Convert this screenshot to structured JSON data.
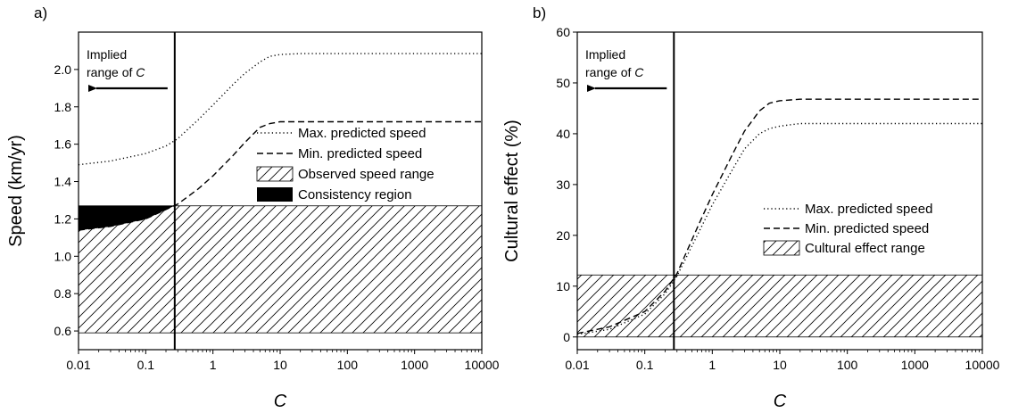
{
  "chart_data": [
    {
      "type": "line",
      "panel_label": "a)",
      "xlabel": "C",
      "ylabel": "Speed (km/yr)",
      "xscale": "log",
      "xlim": [
        0.01,
        10000
      ],
      "ylim": [
        0.5,
        2.2
      ],
      "xticks": [
        "0.01",
        "0.1",
        "1",
        "10",
        "100",
        "1000",
        "10000"
      ],
      "yticks": [
        "0.6",
        "0.8",
        "1.0",
        "1.2",
        "1.4",
        "1.6",
        "1.8",
        "2.0"
      ],
      "annotation_line1": "Implied",
      "annotation_line2": "range of ",
      "annotation_italic": "C",
      "implied_c": 0.27,
      "series": [
        {
          "name": "Max. predicted speed",
          "style": "dotted",
          "x": [
            0.01,
            0.03,
            0.1,
            0.2,
            0.3,
            0.6,
            1,
            2,
            3,
            5,
            7,
            10,
            20,
            50,
            100,
            1000,
            10000
          ],
          "y": [
            1.49,
            1.51,
            1.55,
            1.59,
            1.63,
            1.73,
            1.81,
            1.92,
            1.98,
            2.04,
            2.07,
            2.08,
            2.085,
            2.085,
            2.085,
            2.085,
            2.085
          ]
        },
        {
          "name": "Min. predicted speed",
          "style": "dashed",
          "x": [
            0.01,
            0.03,
            0.1,
            0.2,
            0.3,
            0.6,
            1,
            2,
            3,
            5,
            7,
            10,
            20,
            50,
            100,
            1000,
            10000
          ],
          "y": [
            1.14,
            1.16,
            1.2,
            1.25,
            1.28,
            1.36,
            1.43,
            1.54,
            1.61,
            1.69,
            1.71,
            1.72,
            1.72,
            1.72,
            1.72,
            1.72,
            1.72
          ]
        },
        {
          "name": "Observed speed range",
          "style": "hatched",
          "y_range": [
            0.59,
            1.27
          ]
        },
        {
          "name": "Consistency region",
          "style": "filled",
          "x_range": [
            0.01,
            0.27
          ],
          "y_range": [
            1.14,
            1.27
          ]
        }
      ],
      "legend_placement": "center-right"
    },
    {
      "type": "line",
      "panel_label": "b)",
      "xlabel": "C",
      "ylabel": "Cultural effect (%)",
      "xscale": "log",
      "xlim": [
        0.01,
        10000
      ],
      "ylim": [
        -2.5,
        60
      ],
      "xticks": [
        "0.01",
        "0.1",
        "1",
        "10",
        "100",
        "1000",
        "10000"
      ],
      "yticks": [
        "0",
        "10",
        "20",
        "30",
        "40",
        "50",
        "60"
      ],
      "annotation_line1": "Implied",
      "annotation_line2": "range of ",
      "annotation_italic": "C",
      "implied_c": 0.27,
      "series": [
        {
          "name": "Max. predicted speed",
          "style": "dotted",
          "x": [
            0.01,
            0.03,
            0.1,
            0.2,
            0.3,
            0.6,
            1,
            2,
            3,
            5,
            7,
            10,
            20,
            50,
            100,
            1000,
            10000
          ],
          "y": [
            0.5,
            1.5,
            4.5,
            8.5,
            12,
            20,
            26,
            33,
            37,
            40,
            41,
            41.5,
            42,
            42,
            42,
            42,
            42
          ]
        },
        {
          "name": "Min. predicted speed",
          "style": "dashed",
          "x": [
            0.01,
            0.03,
            0.1,
            0.2,
            0.3,
            0.6,
            1,
            2,
            3,
            5,
            7,
            10,
            20,
            50,
            100,
            1000,
            10000
          ],
          "y": [
            0.7,
            2,
            5,
            9,
            12.5,
            21.5,
            28,
            36,
            40.5,
            44.5,
            46,
            46.5,
            46.8,
            46.8,
            46.8,
            46.8,
            46.8
          ]
        },
        {
          "name": "Cultural effect range",
          "style": "hatched",
          "y_range": [
            0,
            12.2
          ]
        }
      ],
      "legend_placement": "center-right"
    }
  ]
}
